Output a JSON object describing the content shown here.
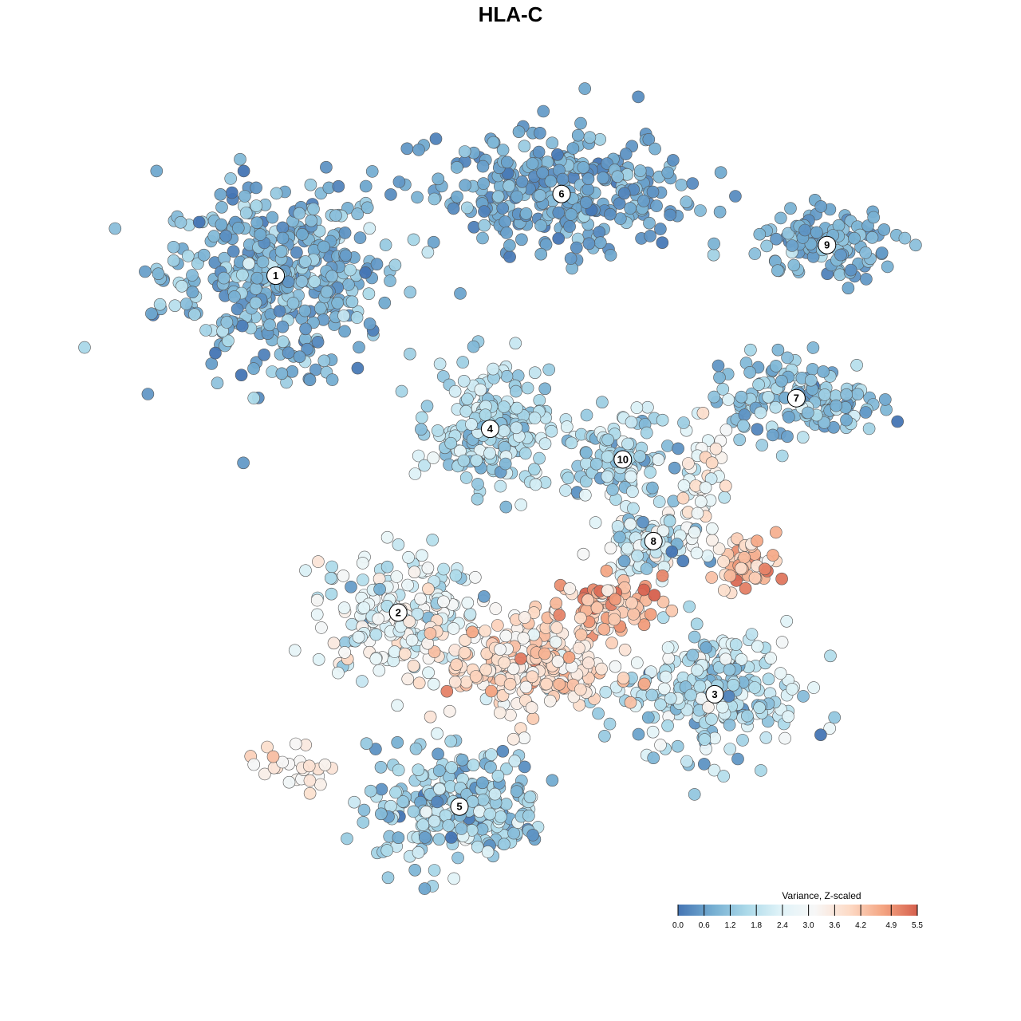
{
  "chart_data": {
    "type": "scatter",
    "title": "HLA-C",
    "xlabel": "",
    "ylabel": "",
    "grid": false,
    "legend_placement": "bottom-right",
    "legend": {
      "title": "Variance, Z-scaled",
      "ticks": [
        "0.0",
        "0.6",
        "1.2",
        "1.8",
        "2.4",
        "3.0",
        "3.6",
        "4.2",
        "4.9",
        "5.5"
      ],
      "range": [
        0.0,
        5.5
      ],
      "colors": [
        "#4575b4",
        "#74add1",
        "#abd9e9",
        "#e0f3f8",
        "#f7f7f7",
        "#fddbc7",
        "#f4a582",
        "#d6604d"
      ]
    },
    "clusters": [
      {
        "label": "1",
        "x": -11.5,
        "y": 11.5,
        "value": 0.9
      },
      {
        "label": "2",
        "x": -5.5,
        "y": -5.0,
        "value": 2.4
      },
      {
        "label": "3",
        "x": 10.0,
        "y": -9.0,
        "value": 1.7
      },
      {
        "label": "4",
        "x": -1.0,
        "y": 4.0,
        "value": 1.5
      },
      {
        "label": "5",
        "x": -2.5,
        "y": -14.5,
        "value": 1.4
      },
      {
        "label": "6",
        "x": 2.5,
        "y": 15.5,
        "value": 0.7
      },
      {
        "label": "7",
        "x": 14.0,
        "y": 5.5,
        "value": 1.1
      },
      {
        "label": "8",
        "x": 7.0,
        "y": -1.5,
        "value": 2.0
      },
      {
        "label": "9",
        "x": 15.5,
        "y": 13.0,
        "value": 0.8
      },
      {
        "label": "10",
        "x": 5.5,
        "y": 2.5,
        "value": 1.6
      }
    ]
  }
}
